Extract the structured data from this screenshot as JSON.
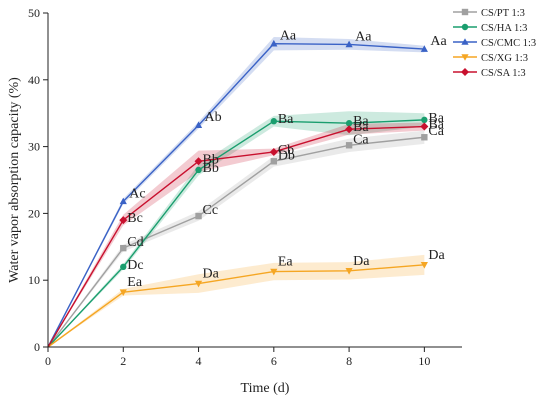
{
  "chart_data": {
    "type": "line",
    "xlabel": "Time (d)",
    "ylabel": "Water vapor absorption capacity (%)",
    "xlim": [
      0,
      11
    ],
    "ylim": [
      0,
      50
    ],
    "xticks": [
      0,
      2,
      4,
      6,
      8,
      10
    ],
    "yticks": [
      0,
      10,
      20,
      30,
      40,
      50
    ],
    "grid": false,
    "legend_position": "top-right",
    "x": [
      0,
      2,
      4,
      6,
      8,
      10
    ],
    "series": [
      {
        "name": "CS/PT 1:3",
        "color": "#a0a0a0",
        "marker": "square",
        "values": [
          0,
          14.8,
          19.6,
          27.8,
          30.2,
          31.4
        ],
        "error": [
          0,
          0.5,
          0.7,
          0.8,
          1.0,
          1.0
        ],
        "labels": [
          "",
          "Cd",
          "Cc",
          "Db",
          "Ca",
          "Ca"
        ]
      },
      {
        "name": "CS/HA 1:3",
        "color": "#1a9e6e",
        "marker": "circle",
        "values": [
          0,
          12.0,
          26.5,
          33.8,
          33.5,
          34.0
        ],
        "error": [
          0,
          0.4,
          0.8,
          0.8,
          1.8,
          1.0
        ],
        "labels": [
          "",
          "Dc",
          "Bb",
          "Ba",
          "Ba",
          "Ba"
        ]
      },
      {
        "name": "CS/CMC 1:3",
        "color": "#3a62c6",
        "marker": "triangle-up",
        "values": [
          0,
          21.8,
          33.2,
          45.4,
          45.3,
          44.6
        ],
        "error": [
          0,
          0.4,
          0.5,
          1.0,
          0.8,
          0.5
        ],
        "labels": [
          "",
          "Ac",
          "Ab",
          "Aa",
          "Aa",
          "Aa"
        ]
      },
      {
        "name": "CS/XG 1:3",
        "color": "#f5a623",
        "marker": "triangle-down",
        "values": [
          0,
          8.2,
          9.5,
          11.3,
          11.4,
          12.3
        ],
        "error": [
          0,
          0.5,
          1.4,
          1.3,
          1.3,
          1.5
        ],
        "labels": [
          "",
          "Ea",
          "Da",
          "Ea",
          "Da",
          "Da"
        ]
      },
      {
        "name": "CS/SA 1:3",
        "color": "#c8102e",
        "marker": "diamond",
        "values": [
          0,
          19.0,
          27.8,
          29.2,
          32.6,
          33.0
        ],
        "error": [
          0,
          0.8,
          1.6,
          0.5,
          0.8,
          0.6
        ],
        "labels": [
          "",
          "Bc",
          "Bb",
          "Cb",
          "Ba",
          "Ba"
        ]
      }
    ]
  }
}
